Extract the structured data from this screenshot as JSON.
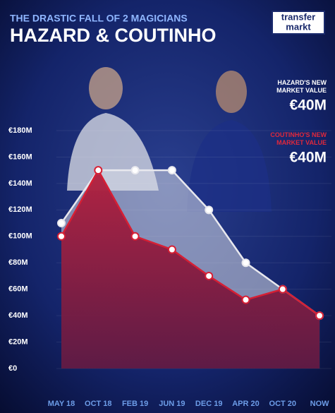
{
  "chart_data": {
    "type": "line",
    "title": "HAZARD & COUTINHO",
    "subtitle": "THE DRASTIC FALL OF 2 MAGICIANS",
    "logo": [
      "transfer",
      "markt"
    ],
    "annotations": [
      {
        "label": "HAZARD'S NEW MARKET VALUE",
        "value": "€40M",
        "color": "#ffffff"
      },
      {
        "label": "COUTINHO'S NEW MARKET VALUE",
        "value": "€40M",
        "color": "#e0283c"
      }
    ],
    "categories": [
      "MAY 18",
      "OCT 18",
      "FEB 19",
      "JUN 19",
      "DEC 19",
      "APR 20",
      "OCT 20",
      "NOW"
    ],
    "series": [
      {
        "color": "#e8e8ee",
        "values": [
          110,
          150,
          150,
          150,
          120,
          80,
          60,
          40
        ]
      },
      {
        "color": "#d61f34",
        "values": [
          100,
          150,
          100,
          90,
          70,
          52,
          60,
          40
        ]
      }
    ],
    "ylim": [
      0,
      180
    ],
    "yticks": [
      {
        "value": 0,
        "label": "€0"
      },
      {
        "value": 20,
        "label": "€20M"
      },
      {
        "value": 40,
        "label": "€40M"
      },
      {
        "value": 60,
        "label": "€60M"
      },
      {
        "value": 80,
        "label": "€80M"
      },
      {
        "value": 100,
        "label": "€100M"
      },
      {
        "value": 120,
        "label": "€120M"
      },
      {
        "value": 140,
        "label": "€140M"
      },
      {
        "value": 160,
        "label": "€160M"
      },
      {
        "value": 180,
        "label": "€180M"
      }
    ],
    "grid": true
  }
}
